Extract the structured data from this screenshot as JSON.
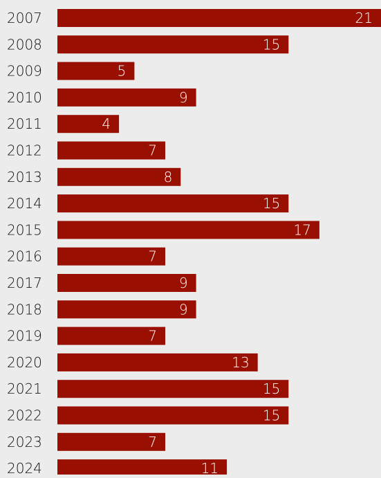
{
  "chart_data": {
    "type": "bar",
    "orientation": "horizontal",
    "categories": [
      "2007",
      "2008",
      "2009",
      "2010",
      "2011",
      "2012",
      "2013",
      "2014",
      "2015",
      "2016",
      "2017",
      "2018",
      "2019",
      "2020",
      "2021",
      "2022",
      "2023",
      "2024"
    ],
    "values": [
      21,
      15,
      5,
      9,
      4,
      7,
      8,
      15,
      17,
      7,
      9,
      9,
      7,
      13,
      15,
      15,
      7,
      11
    ],
    "value_labels": [
      "21",
      "15",
      "5",
      "9",
      "4",
      "7",
      "8",
      "15",
      "17",
      "7",
      "9",
      "9",
      "7",
      "13",
      "15",
      "15",
      "7",
      "11"
    ],
    "title": "",
    "xlabel": "",
    "ylabel": "",
    "xlim": [
      0,
      21
    ],
    "grid": false,
    "legend": "none",
    "bar_color": "#990f02",
    "label_color": "#ffffff",
    "tick_label_color": "#111111",
    "background": "#ececec"
  }
}
